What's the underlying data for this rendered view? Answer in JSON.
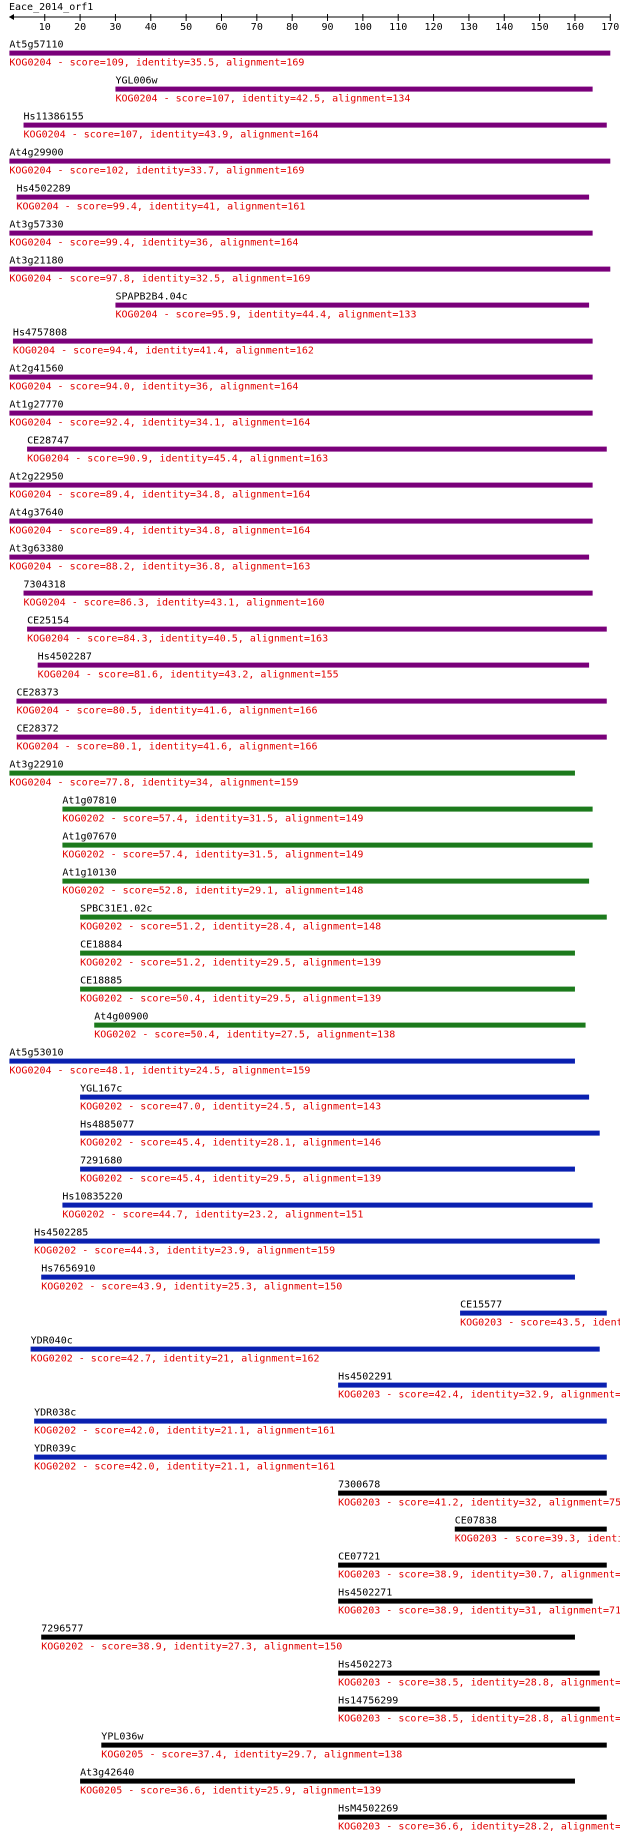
{
  "title": "Eace_2014_orf1",
  "ruler": {
    "range": [
      0,
      170
    ],
    "ticks": [
      10,
      20,
      30,
      40,
      50,
      60,
      70,
      80,
      90,
      100,
      110,
      120,
      130,
      140,
      150,
      160,
      170
    ]
  },
  "hits": [
    {
      "name": "At5g57110",
      "start": 0,
      "end": 170,
      "color": "#7a007a",
      "label": "KOG0204 - score=109, identity=35.5, alignment=169"
    },
    {
      "name": "YGL006w",
      "start": 30,
      "end": 165,
      "color": "#7a007a",
      "label": "KOG0204 - score=107, identity=42.5, alignment=134"
    },
    {
      "name": "Hs11386155",
      "start": 4,
      "end": 169,
      "color": "#7a007a",
      "label": "KOG0204 - score=107, identity=43.9, alignment=164"
    },
    {
      "name": "At4g29900",
      "start": 0,
      "end": 170,
      "color": "#7a007a",
      "label": "KOG0204 - score=102, identity=33.7, alignment=169"
    },
    {
      "name": "Hs4502289",
      "start": 2,
      "end": 164,
      "color": "#7a007a",
      "label": "KOG0204 - score=99.4, identity=41, alignment=161"
    },
    {
      "name": "At3g57330",
      "start": 0,
      "end": 165,
      "color": "#7a007a",
      "label": "KOG0204 - score=99.4, identity=36, alignment=164"
    },
    {
      "name": "At3g21180",
      "start": 0,
      "end": 170,
      "color": "#7a007a",
      "label": "KOG0204 - score=97.8, identity=32.5, alignment=169"
    },
    {
      "name": "SPAPB2B4.04c",
      "start": 30,
      "end": 164,
      "color": "#7a007a",
      "label": "KOG0204 - score=95.9, identity=44.4, alignment=133"
    },
    {
      "name": "Hs4757808",
      "start": 1,
      "end": 165,
      "color": "#7a007a",
      "label": "KOG0204 - score=94.4, identity=41.4, alignment=162"
    },
    {
      "name": "At2g41560",
      "start": 0,
      "end": 165,
      "color": "#7a007a",
      "label": "KOG0204 - score=94.0, identity=36, alignment=164"
    },
    {
      "name": "At1g27770",
      "start": 0,
      "end": 165,
      "color": "#7a007a",
      "label": "KOG0204 - score=92.4, identity=34.1, alignment=164"
    },
    {
      "name": "CE28747",
      "start": 5,
      "end": 169,
      "color": "#7a007a",
      "label": "KOG0204 - score=90.9, identity=45.4, alignment=163"
    },
    {
      "name": "At2g22950",
      "start": 0,
      "end": 165,
      "color": "#7a007a",
      "label": "KOG0204 - score=89.4, identity=34.8, alignment=164"
    },
    {
      "name": "At4g37640",
      "start": 0,
      "end": 165,
      "color": "#7a007a",
      "label": "KOG0204 - score=89.4, identity=34.8, alignment=164"
    },
    {
      "name": "At3g63380",
      "start": 0,
      "end": 164,
      "color": "#7a007a",
      "label": "KOG0204 - score=88.2, identity=36.8, alignment=163"
    },
    {
      "name": "7304318",
      "start": 4,
      "end": 165,
      "color": "#7a007a",
      "label": "KOG0204 - score=86.3, identity=43.1, alignment=160"
    },
    {
      "name": "CE25154",
      "start": 5,
      "end": 169,
      "color": "#7a007a",
      "label": "KOG0204 - score=84.3, identity=40.5, alignment=163"
    },
    {
      "name": "Hs4502287",
      "start": 8,
      "end": 164,
      "color": "#7a007a",
      "label": "KOG0204 - score=81.6, identity=43.2, alignment=155"
    },
    {
      "name": "CE28373",
      "start": 2,
      "end": 169,
      "color": "#7a007a",
      "label": "KOG0204 - score=80.5, identity=41.6, alignment=166"
    },
    {
      "name": "CE28372",
      "start": 2,
      "end": 169,
      "color": "#7a007a",
      "label": "KOG0204 - score=80.1, identity=41.6, alignment=166"
    },
    {
      "name": "At3g22910",
      "start": 0,
      "end": 160,
      "color": "#1c7a1c",
      "label": "KOG0204 - score=77.8, identity=34, alignment=159"
    },
    {
      "name": "At1g07810",
      "start": 15,
      "end": 165,
      "color": "#1c7a1c",
      "label": "KOG0202 - score=57.4, identity=31.5, alignment=149"
    },
    {
      "name": "At1g07670",
      "start": 15,
      "end": 165,
      "color": "#1c7a1c",
      "label": "KOG0202 - score=57.4, identity=31.5, alignment=149"
    },
    {
      "name": "At1g10130",
      "start": 15,
      "end": 164,
      "color": "#1c7a1c",
      "label": "KOG0202 - score=52.8, identity=29.1, alignment=148"
    },
    {
      "name": "SPBC31E1.02c",
      "start": 20,
      "end": 169,
      "color": "#1c7a1c",
      "label": "KOG0202 - score=51.2, identity=28.4, alignment=148"
    },
    {
      "name": "CE18884",
      "start": 20,
      "end": 160,
      "color": "#1c7a1c",
      "label": "KOG0202 - score=51.2, identity=29.5, alignment=139"
    },
    {
      "name": "CE18885",
      "start": 20,
      "end": 160,
      "color": "#1c7a1c",
      "label": "KOG0202 - score=50.4, identity=29.5, alignment=139"
    },
    {
      "name": "At4g00900",
      "start": 24,
      "end": 163,
      "color": "#1c7a1c",
      "label": "KOG0202 - score=50.4, identity=27.5, alignment=138"
    },
    {
      "name": "At5g53010",
      "start": 0,
      "end": 160,
      "color": "#0a20b0",
      "label": "KOG0204 - score=48.1, identity=24.5, alignment=159"
    },
    {
      "name": "YGL167c",
      "start": 20,
      "end": 164,
      "color": "#0a20b0",
      "label": "KOG0202 - score=47.0, identity=24.5, alignment=143"
    },
    {
      "name": "Hs4885077",
      "start": 20,
      "end": 167,
      "color": "#0a20b0",
      "label": "KOG0202 - score=45.4, identity=28.1, alignment=146"
    },
    {
      "name": "7291680",
      "start": 20,
      "end": 160,
      "color": "#0a20b0",
      "label": "KOG0202 - score=45.4, identity=29.5, alignment=139"
    },
    {
      "name": "Hs10835220",
      "start": 15,
      "end": 165,
      "color": "#0a20b0",
      "label": "KOG0202 - score=44.7, identity=23.2, alignment=151"
    },
    {
      "name": "Hs4502285",
      "start": 7,
      "end": 167,
      "color": "#0a20b0",
      "label": "KOG0202 - score=44.3, identity=23.9, alignment=159"
    },
    {
      "name": "Hs7656910",
      "start": 9,
      "end": 160,
      "color": "#0a20b0",
      "label": "KOG0202 - score=43.9, identity=25.3, alignment=150"
    },
    {
      "name": "CE15577",
      "start": 127.5,
      "end": 169,
      "color": "#0a20b0",
      "label": "KOG0203 - score=43.5, ident"
    },
    {
      "name": "YDR040c",
      "start": 6,
      "end": 167,
      "color": "#0a20b0",
      "label": "KOG0202 - score=42.7, identity=21, alignment=162"
    },
    {
      "name": "Hs4502291",
      "start": 93,
      "end": 169,
      "color": "#0a20b0",
      "label": "KOG0203 - score=42.4, identity=32.9, alignment="
    },
    {
      "name": "YDR038c",
      "start": 7,
      "end": 169,
      "color": "#0a20b0",
      "label": "KOG0202 - score=42.0, identity=21.1, alignment=161"
    },
    {
      "name": "YDR039c",
      "start": 7,
      "end": 169,
      "color": "#0a20b0",
      "label": "KOG0202 - score=42.0, identity=21.1, alignment=161"
    },
    {
      "name": "7300678",
      "start": 93,
      "end": 169,
      "color": "#000000",
      "label": "KOG0203 - score=41.2, identity=32, alignment=75"
    },
    {
      "name": "CE07838",
      "start": 126,
      "end": 169,
      "color": "#000000",
      "label": "KOG0203 - score=39.3, identi"
    },
    {
      "name": "CE07721",
      "start": 93,
      "end": 169,
      "color": "#000000",
      "label": "KOG0203 - score=38.9, identity=30.7, alignment="
    },
    {
      "name": "Hs4502271",
      "start": 93,
      "end": 165,
      "color": "#000000",
      "label": "KOG0203 - score=38.9, identity=31, alignment=71"
    },
    {
      "name": "7296577",
      "start": 9,
      "end": 160,
      "color": "#000000",
      "label": "KOG0202 - score=38.9, identity=27.3, alignment=150"
    },
    {
      "name": "Hs4502273",
      "start": 93,
      "end": 167,
      "color": "#000000",
      "label": "KOG0203 - score=38.5, identity=28.8, alignment="
    },
    {
      "name": "Hs14756299",
      "start": 93,
      "end": 167,
      "color": "#000000",
      "label": "KOG0203 - score=38.5, identity=28.8, alignment="
    },
    {
      "name": "YPL036w",
      "start": 26,
      "end": 169,
      "color": "#000000",
      "label": "KOG0205 - score=37.4, identity=29.7, alignment=138"
    },
    {
      "name": "At3g42640",
      "start": 20,
      "end": 160,
      "color": "#000000",
      "label": "KOG0205 - score=36.6, identity=25.9, alignment=139"
    },
    {
      "name": "HsM4502269",
      "start": 93,
      "end": 169,
      "color": "#000000",
      "label": "KOG0203 - score=36.6, identity=28.2, alignment="
    }
  ]
}
